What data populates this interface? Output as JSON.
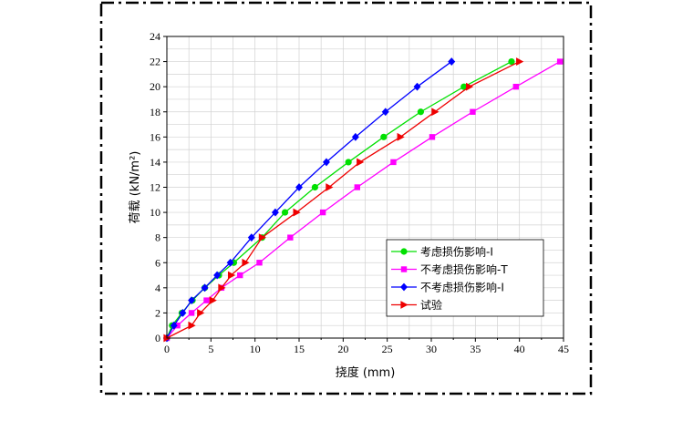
{
  "chart_data": {
    "type": "line",
    "xlabel": "挠度 (mm)",
    "ylabel": "荷载 (kN/m²)",
    "xlim": [
      0,
      45
    ],
    "ylim": [
      0,
      24
    ],
    "xticks": [
      0,
      5,
      10,
      15,
      20,
      25,
      30,
      35,
      40,
      45
    ],
    "yticks": [
      0,
      2,
      4,
      6,
      8,
      10,
      12,
      14,
      16,
      18,
      20,
      22,
      24
    ],
    "grid": true,
    "legend_position": "bottom-right",
    "series": [
      {
        "name": "考虑损伤影响-I",
        "color": "#00e000",
        "marker": "circle",
        "points": [
          [
            0,
            0
          ],
          [
            0.6,
            1
          ],
          [
            1.7,
            2
          ],
          [
            2.9,
            3
          ],
          [
            4.3,
            4
          ],
          [
            5.9,
            5
          ],
          [
            7.6,
            6
          ],
          [
            10.8,
            8
          ],
          [
            13.4,
            10
          ],
          [
            16.8,
            12
          ],
          [
            20.6,
            14
          ],
          [
            24.6,
            16
          ],
          [
            28.8,
            18
          ],
          [
            33.7,
            20
          ],
          [
            39.1,
            22
          ]
        ]
      },
      {
        "name": "不考虑损伤影响-T",
        "color": "#ff00ff",
        "marker": "square",
        "points": [
          [
            0,
            0
          ],
          [
            1.2,
            1
          ],
          [
            2.8,
            2
          ],
          [
            4.5,
            3
          ],
          [
            6.2,
            4
          ],
          [
            8.3,
            5
          ],
          [
            10.5,
            6
          ],
          [
            14,
            8
          ],
          [
            17.7,
            10
          ],
          [
            21.6,
            12
          ],
          [
            25.7,
            14
          ],
          [
            30.1,
            16
          ],
          [
            34.7,
            18
          ],
          [
            39.6,
            20
          ],
          [
            44.6,
            22
          ]
        ]
      },
      {
        "name": "不考虑损伤影响-I",
        "color": "#0000ff",
        "marker": "diamond",
        "points": [
          [
            0,
            0
          ],
          [
            0.8,
            1
          ],
          [
            1.8,
            2
          ],
          [
            2.8,
            3
          ],
          [
            4.3,
            4
          ],
          [
            5.7,
            5
          ],
          [
            7.2,
            6
          ],
          [
            9.6,
            8
          ],
          [
            12.3,
            10
          ],
          [
            15,
            12
          ],
          [
            18.1,
            14
          ],
          [
            21.4,
            16
          ],
          [
            24.8,
            18
          ],
          [
            28.4,
            20
          ],
          [
            32.3,
            22
          ]
        ]
      },
      {
        "name": "试验",
        "color": "#ee0000",
        "marker": "triangle-right",
        "points": [
          [
            0,
            0
          ],
          [
            2.8,
            1
          ],
          [
            3.8,
            2
          ],
          [
            5.2,
            3
          ],
          [
            6.2,
            4
          ],
          [
            7.3,
            5
          ],
          [
            8.9,
            6
          ],
          [
            10.8,
            8
          ],
          [
            14.7,
            10
          ],
          [
            18.4,
            12
          ],
          [
            21.9,
            14
          ],
          [
            26.5,
            16
          ],
          [
            30.4,
            18
          ],
          [
            34.3,
            20
          ],
          [
            40,
            22
          ]
        ]
      }
    ]
  }
}
